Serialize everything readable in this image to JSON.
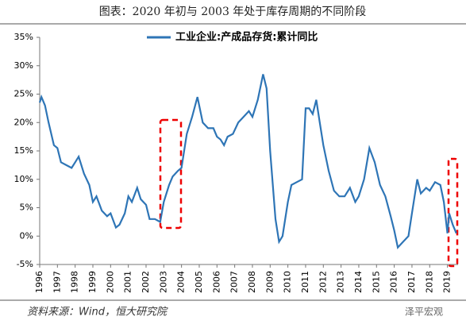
{
  "chart_data": {
    "type": "line",
    "title": "图表：2020 年初与 2003 年处于库存周期的不同阶段",
    "source": "资料来源：Wind，恒大研究院",
    "watermark": "泽平宏观",
    "x": [
      1996.0,
      1996.1,
      1996.3,
      1996.5,
      1996.8,
      1997.0,
      1997.2,
      1997.5,
      1997.8,
      1998.0,
      1998.2,
      1998.5,
      1998.8,
      1999.0,
      1999.2,
      1999.5,
      1999.8,
      2000.0,
      2000.3,
      2000.5,
      2000.8,
      2001.0,
      2001.2,
      2001.5,
      2001.7,
      2002.0,
      2002.2,
      2002.5,
      2002.8,
      2003.0,
      2003.3,
      2003.5,
      2003.8,
      2004.0,
      2004.3,
      2004.6,
      2004.9,
      2005.2,
      2005.5,
      2005.8,
      2006.0,
      2006.2,
      2006.4,
      2006.6,
      2006.9,
      2007.2,
      2007.5,
      2007.8,
      2008.0,
      2008.3,
      2008.6,
      2008.8,
      2009.0,
      2009.3,
      2009.5,
      2009.7,
      2010.0,
      2010.2,
      2010.5,
      2010.8,
      2011.0,
      2011.2,
      2011.4,
      2011.6,
      2011.8,
      2012.0,
      2012.3,
      2012.6,
      2012.9,
      2013.2,
      2013.5,
      2013.8,
      2014.0,
      2014.3,
      2014.6,
      2014.9,
      2015.2,
      2015.5,
      2015.8,
      2016.0,
      2016.2,
      2016.5,
      2016.8,
      2017.0,
      2017.3,
      2017.5,
      2017.8,
      2018.0,
      2018.3,
      2018.6,
      2018.8,
      2019.0,
      2019.1,
      2019.3,
      2019.5
    ],
    "series": [
      {
        "name": "工业企业:产成品存货:累计同比",
        "color": "#2e75b6",
        "values": [
          23.5,
          24.5,
          23,
          20,
          16,
          15.5,
          13,
          12.5,
          12,
          13,
          14,
          11,
          9,
          6,
          7,
          4.5,
          3.5,
          4,
          1.5,
          2,
          4,
          7,
          6,
          8.5,
          6.5,
          5.5,
          3,
          3,
          2.5,
          6,
          9,
          10.5,
          11.5,
          12,
          18,
          21,
          24.5,
          20,
          19,
          19,
          17.5,
          17,
          16,
          17.5,
          18,
          20,
          21,
          22,
          21,
          24,
          28.5,
          26,
          15,
          3,
          -1,
          0,
          6,
          9,
          9.5,
          10,
          22.5,
          22.5,
          21.5,
          24,
          20,
          16,
          11.5,
          8,
          7,
          7,
          8.5,
          6,
          7,
          10,
          15.5,
          13,
          9,
          7,
          3.5,
          1,
          -2,
          -1,
          0,
          4,
          10,
          7.5,
          8.5,
          8,
          9.5,
          9,
          6,
          0.5,
          4,
          2,
          0.5
        ]
      }
    ],
    "xlim": [
      1996,
      2019.6
    ],
    "xticks": [
      1996,
      1997,
      1998,
      1999,
      2000,
      2001,
      2002,
      2003,
      2004,
      2005,
      2006,
      2007,
      2008,
      2009,
      2010,
      2011,
      2012,
      2013,
      2014,
      2015,
      2016,
      2017,
      2018,
      2019
    ],
    "ylim": [
      -5,
      35
    ],
    "yticks": [
      {
        "value": -5,
        "label": "-5%"
      },
      {
        "value": 0,
        "label": "0%"
      },
      {
        "value": 5,
        "label": "5%"
      },
      {
        "value": 10,
        "label": "10%"
      },
      {
        "value": 15,
        "label": "15%"
      },
      {
        "value": 20,
        "label": "20%"
      },
      {
        "value": 25,
        "label": "25%"
      },
      {
        "value": 30,
        "label": "30%"
      },
      {
        "value": 35,
        "label": "35%"
      }
    ],
    "legend": "top"
  }
}
